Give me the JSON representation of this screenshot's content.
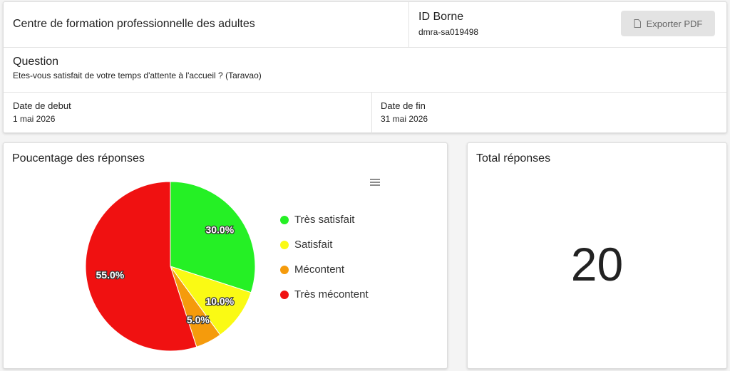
{
  "header": {
    "title": "Centre de formation professionnelle des adultes",
    "id_label": "ID Borne",
    "id_value": "dmra-sa019498",
    "export_button": "Exporter PDF"
  },
  "question": {
    "label": "Question",
    "text": "Etes-vous satisfait de votre temps d'attente à l'accueil ? (Taravao)"
  },
  "dates": {
    "start_label": "Date de debut",
    "start_value": "1 mai 2026",
    "end_label": "Date de fin",
    "end_value": "31 mai 2026"
  },
  "chart_data": {
    "type": "pie",
    "title": "Poucentage des réponses",
    "categories": [
      "Très satisfait",
      "Satisfait",
      "Mécontent",
      "Très mécontent"
    ],
    "values": [
      30,
      10,
      5,
      55
    ],
    "value_labels": [
      "30.0%",
      "10.0%",
      "5.0%",
      "55.0%"
    ],
    "colors": [
      "#25f025",
      "#fafa14",
      "#f59b0c",
      "#f01111"
    ]
  },
  "total": {
    "label": "Total réponses",
    "value": 20
  }
}
